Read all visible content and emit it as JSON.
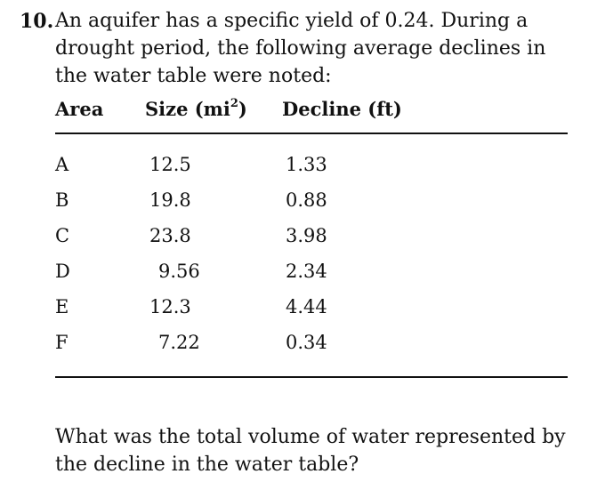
{
  "problem": {
    "number": "10.",
    "statement": "An aquifer has a specific yield of 0.24. During a drought period, the following average declines in the water table were noted:"
  },
  "table": {
    "headers": {
      "area": "Area",
      "size_prefix": "Size (mi",
      "size_sup": "2",
      "size_suffix": ")",
      "decline": "Decline (ft)"
    },
    "rows": [
      {
        "area": "A",
        "size": "12.5",
        "decline": "1.33"
      },
      {
        "area": "B",
        "size": "19.8",
        "decline": "0.88"
      },
      {
        "area": "C",
        "size": "23.8",
        "decline": "3.98"
      },
      {
        "area": "D",
        "size": "9.56",
        "decline": "2.34"
      },
      {
        "area": "E",
        "size": "12.3",
        "decline": "4.44"
      },
      {
        "area": "F",
        "size": "7.22",
        "decline": "0.34"
      }
    ]
  },
  "question": "What was the total volume of water represented by the decline in the water table?"
}
